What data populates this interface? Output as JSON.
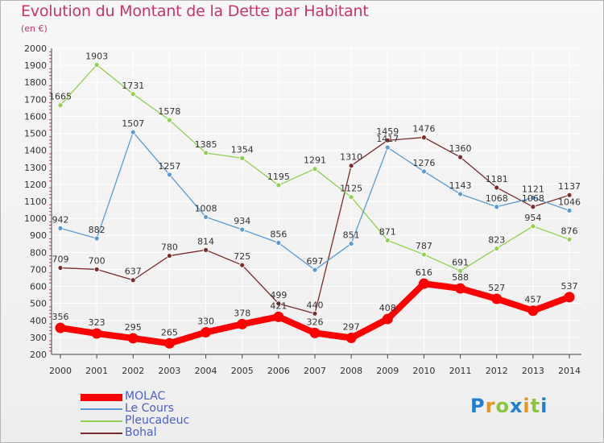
{
  "title": "Evolution du Montant de la Dette par Habitant",
  "subtitle": "(en €)",
  "logo_text": "Proxiti",
  "chart_data": {
    "type": "line",
    "x": [
      "2000",
      "2001",
      "2002",
      "2003",
      "2004",
      "2005",
      "2006",
      "2007",
      "2008",
      "2009",
      "2010",
      "2011",
      "2012",
      "2013",
      "2014"
    ],
    "ylim": [
      200,
      2000
    ],
    "yticks": [
      200,
      300,
      400,
      500,
      600,
      700,
      800,
      900,
      1000,
      1100,
      1200,
      1300,
      1400,
      1500,
      1600,
      1700,
      1800,
      1900,
      2000
    ],
    "grid": true,
    "legend_position": "bottom-left",
    "series": [
      {
        "name": "MOLAC",
        "color": "#ff0000",
        "values": [
          356,
          323,
          295,
          265,
          330,
          378,
          421,
          326,
          297,
          408,
          616,
          588,
          527,
          457,
          537
        ]
      },
      {
        "name": "Le Cours",
        "color": "#5b9bd5",
        "values": [
          942,
          882,
          1507,
          1257,
          1008,
          934,
          856,
          697,
          851,
          1417,
          1276,
          1143,
          1068,
          1121,
          1046
        ]
      },
      {
        "name": "Pleucadeuc",
        "color": "#92d050",
        "values": [
          1665,
          1903,
          1731,
          1578,
          1385,
          1354,
          1195,
          1291,
          1125,
          871,
          787,
          691,
          823,
          954,
          876
        ]
      },
      {
        "name": "Bohal",
        "color": "#7b2c2c",
        "values": [
          709,
          700,
          637,
          780,
          814,
          725,
          499,
          440,
          1310,
          1459,
          1476,
          1360,
          1181,
          1068,
          1137
        ]
      }
    ]
  }
}
